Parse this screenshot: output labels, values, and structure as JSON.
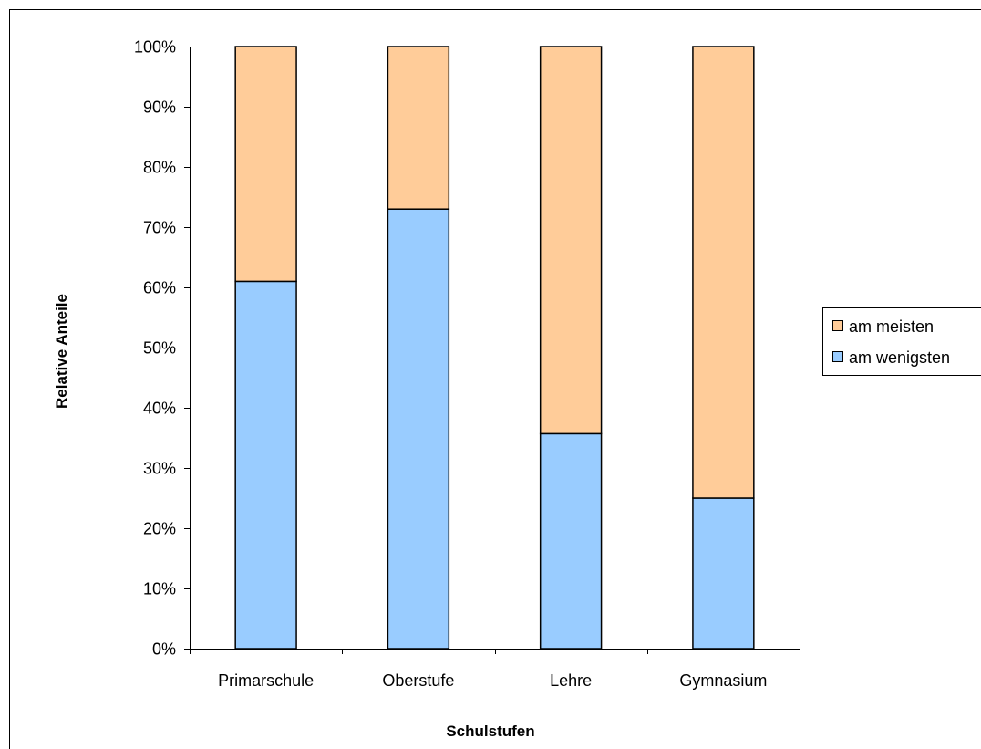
{
  "chart_data": {
    "type": "bar",
    "stacked": true,
    "normalized": true,
    "title": "",
    "xlabel": "Schulstufen",
    "ylabel": "Relative Anteile",
    "ylim": [
      0,
      100
    ],
    "y_ticks": [
      "0%",
      "10%",
      "20%",
      "30%",
      "40%",
      "50%",
      "60%",
      "70%",
      "80%",
      "90%",
      "100%"
    ],
    "categories": [
      "Primarschule",
      "Oberstufe",
      "Lehre",
      "Gymnasium"
    ],
    "series": [
      {
        "name": "am wenigsten",
        "legend_label": "am wenigsten",
        "color": "#99ccff",
        "values": [
          61,
          73,
          35.7,
          25
        ]
      },
      {
        "name": "am meisten",
        "legend_label": "am meisten",
        "color": "#ffcc99",
        "values": [
          39,
          27,
          64.3,
          75
        ]
      }
    ],
    "legend_order": [
      "am meisten",
      "am wenigsten"
    ],
    "legend_position": "right",
    "grid": false
  }
}
